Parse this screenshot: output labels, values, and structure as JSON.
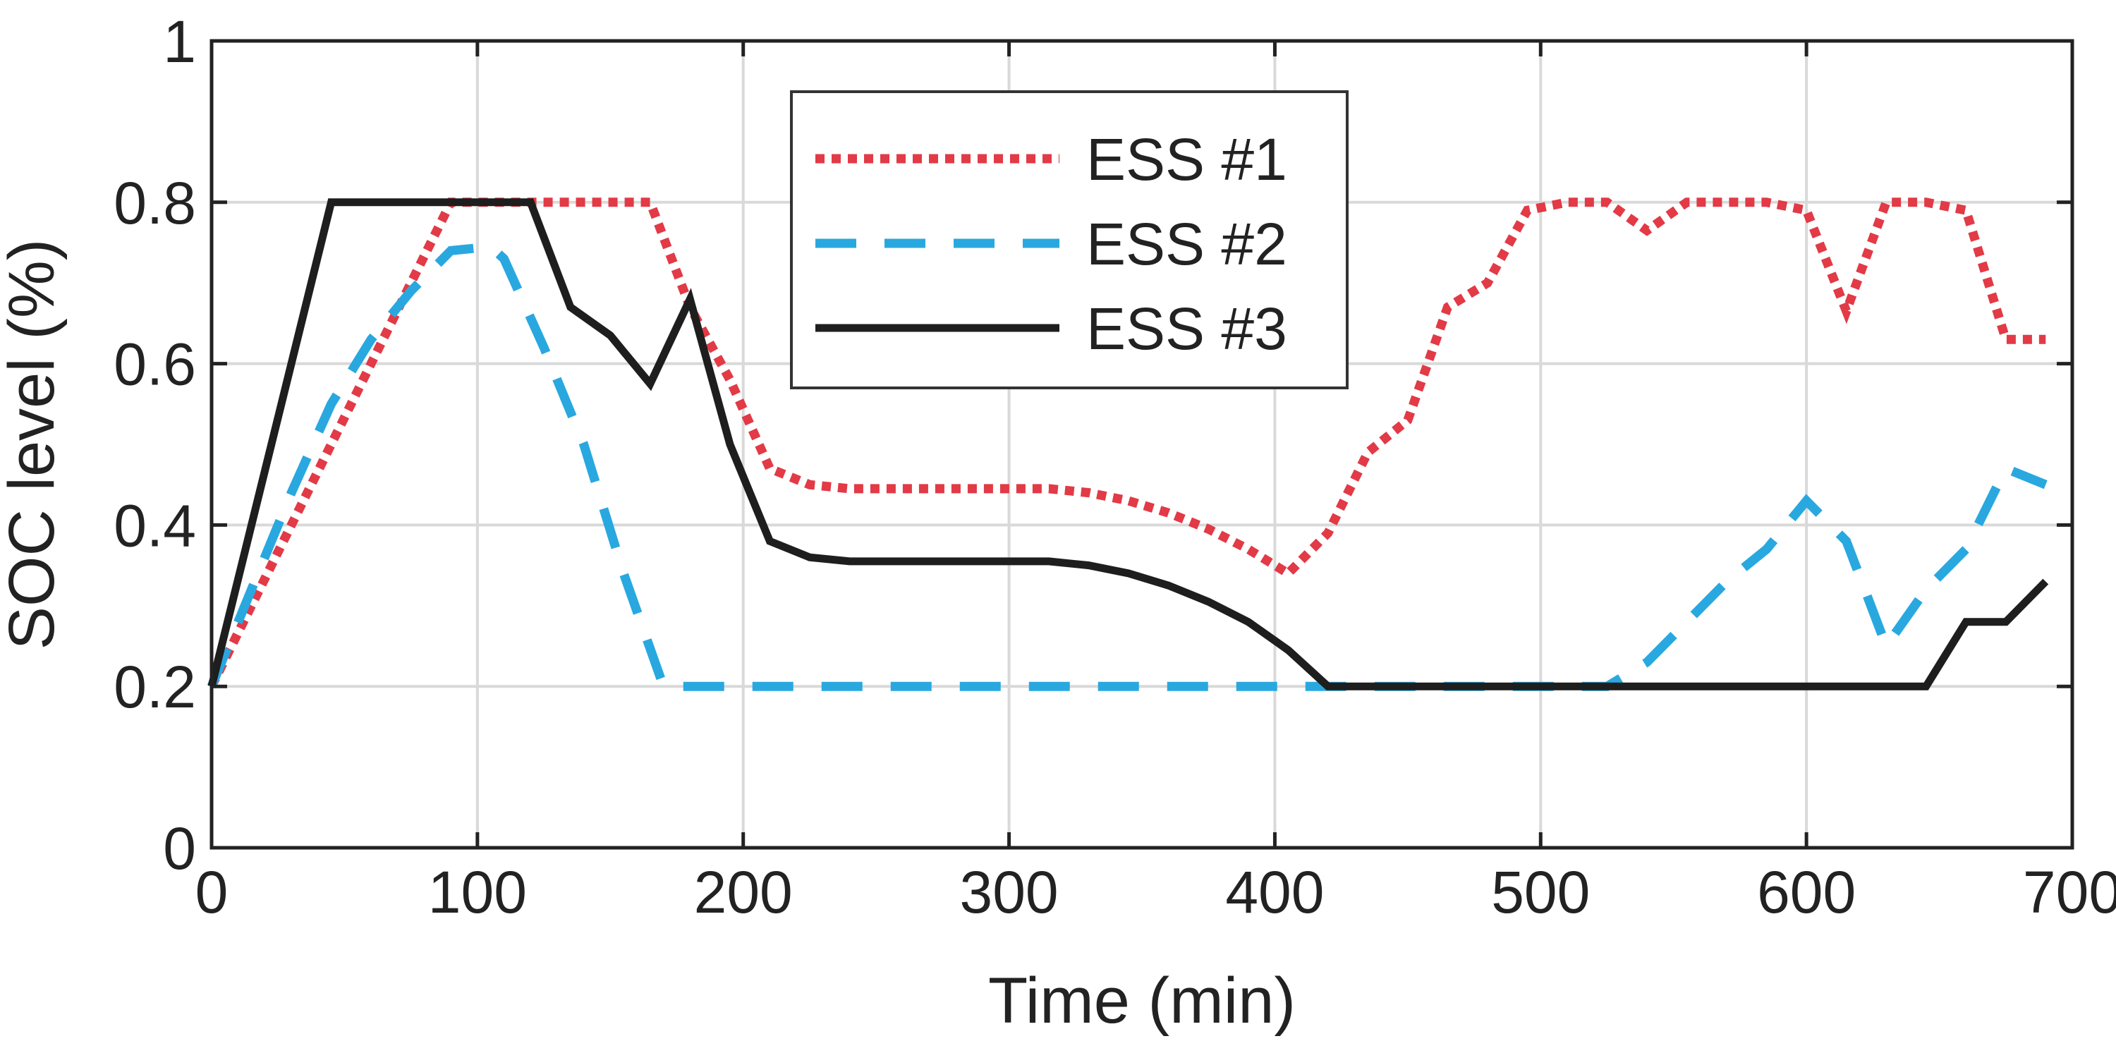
{
  "chart_data": {
    "type": "line",
    "title": "",
    "xlabel": "Time (min)",
    "ylabel": "SOC level (%)",
    "xlim": [
      0,
      700
    ],
    "ylim": [
      0,
      1
    ],
    "xticks": [
      0,
      100,
      200,
      300,
      400,
      500,
      600,
      700
    ],
    "xtick_labels": [
      "0",
      "100",
      "200",
      "300",
      "400",
      "500",
      "600",
      "700"
    ],
    "yticks": [
      0,
      0.2,
      0.4,
      0.6,
      0.8,
      1
    ],
    "ytick_labels": [
      "0",
      "0.2",
      "0.4",
      "0.6",
      "0.8",
      "1"
    ],
    "grid": true,
    "legend_position": "top-center",
    "series": [
      {
        "name": "ESS #1",
        "color": "#e23a46",
        "style": "dotted",
        "x": [
          0,
          15,
          30,
          45,
          60,
          75,
          90,
          105,
          120,
          135,
          150,
          165,
          180,
          195,
          210,
          225,
          240,
          255,
          270,
          285,
          300,
          315,
          330,
          345,
          360,
          375,
          390,
          405,
          420,
          435,
          450,
          465,
          480,
          495,
          510,
          525,
          540,
          555,
          570,
          585,
          600,
          615,
          630,
          645,
          660,
          675,
          690
        ],
        "y": [
          0.2,
          0.3,
          0.4,
          0.5,
          0.6,
          0.7,
          0.8,
          0.8,
          0.8,
          0.8,
          0.8,
          0.8,
          0.67,
          0.58,
          0.47,
          0.45,
          0.445,
          0.445,
          0.445,
          0.445,
          0.445,
          0.445,
          0.44,
          0.43,
          0.415,
          0.395,
          0.37,
          0.34,
          0.39,
          0.49,
          0.53,
          0.67,
          0.7,
          0.79,
          0.8,
          0.8,
          0.765,
          0.8,
          0.8,
          0.8,
          0.79,
          0.665,
          0.8,
          0.8,
          0.79,
          0.63,
          0.63
        ]
      },
      {
        "name": "ESS #2",
        "color": "#29a8e0",
        "style": "dashed",
        "x": [
          0,
          15,
          30,
          45,
          60,
          75,
          90,
          105,
          110,
          125,
          140,
          155,
          170,
          185,
          200,
          250,
          300,
          350,
          400,
          420,
          450,
          480,
          510,
          525,
          540,
          555,
          570,
          585,
          600,
          615,
          630,
          645,
          660,
          675,
          690
        ],
        "y": [
          0.2,
          0.32,
          0.44,
          0.55,
          0.63,
          0.69,
          0.74,
          0.745,
          0.73,
          0.62,
          0.5,
          0.34,
          0.2,
          0.2,
          0.2,
          0.2,
          0.2,
          0.2,
          0.2,
          0.2,
          0.2,
          0.2,
          0.2,
          0.2,
          0.23,
          0.28,
          0.33,
          0.37,
          0.43,
          0.38,
          0.25,
          0.32,
          0.37,
          0.47,
          0.45
        ]
      },
      {
        "name": "ESS #3",
        "color": "#1e1e1e",
        "style": "solid",
        "x": [
          0,
          45,
          60,
          75,
          90,
          105,
          120,
          135,
          150,
          165,
          180,
          195,
          210,
          225,
          240,
          255,
          270,
          285,
          300,
          315,
          330,
          345,
          360,
          375,
          390,
          405,
          420,
          450,
          500,
          550,
          600,
          645,
          660,
          675,
          690
        ],
        "y": [
          0.2,
          0.8,
          0.8,
          0.8,
          0.8,
          0.8,
          0.8,
          0.67,
          0.635,
          0.575,
          0.68,
          0.5,
          0.38,
          0.36,
          0.355,
          0.355,
          0.355,
          0.355,
          0.355,
          0.355,
          0.35,
          0.34,
          0.325,
          0.305,
          0.28,
          0.245,
          0.2,
          0.2,
          0.2,
          0.2,
          0.2,
          0.2,
          0.28,
          0.28,
          0.33
        ]
      }
    ]
  }
}
